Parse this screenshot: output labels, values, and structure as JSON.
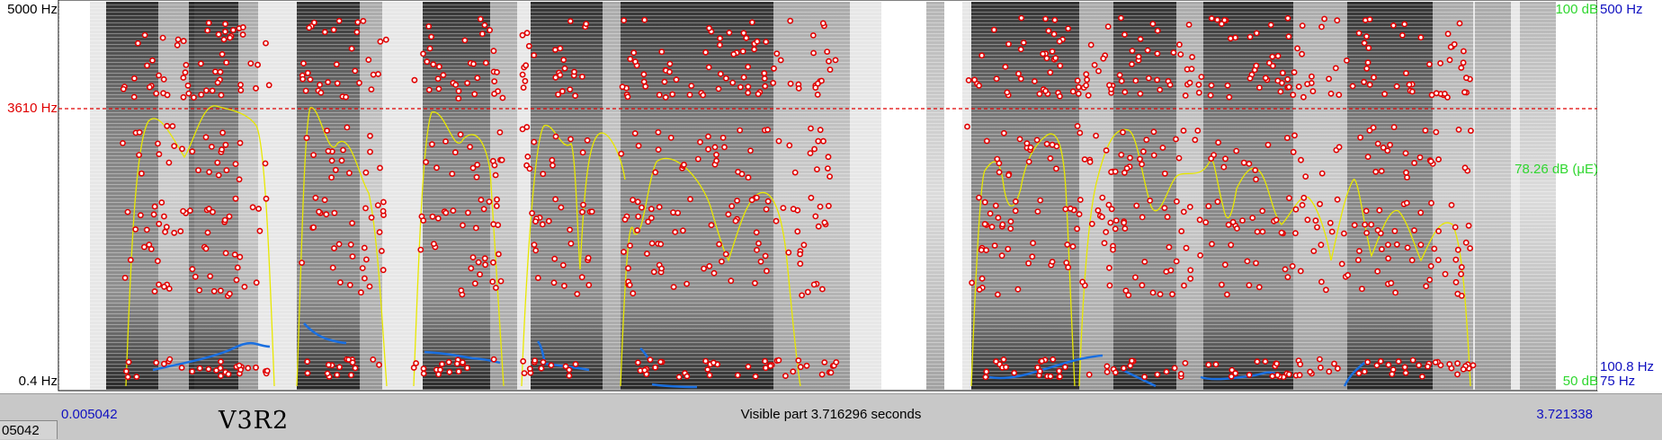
{
  "left_axis": {
    "top": "5000 Hz",
    "cursor": "3610 Hz",
    "bottom": "0.4 Hz"
  },
  "right_axis": {
    "intensity_top": "100 dB",
    "intensity_mid": "78.26 dB (μE)",
    "intensity_bottom": "50 dB",
    "pitch_top": "500 Hz",
    "pitch_value": "100.8 Hz",
    "pitch_bottom": "75 Hz"
  },
  "time_bar": {
    "start": "0.005042",
    "end": "3.721338",
    "visible_part": "Visible part 3.716296 seconds",
    "corner": "05042"
  },
  "tier": {
    "label": "V3R2"
  },
  "colors": {
    "formant": "#e00000",
    "pitch": "#1a6fe0",
    "intensity": "#e8e800",
    "cursor": "#e00000"
  }
}
